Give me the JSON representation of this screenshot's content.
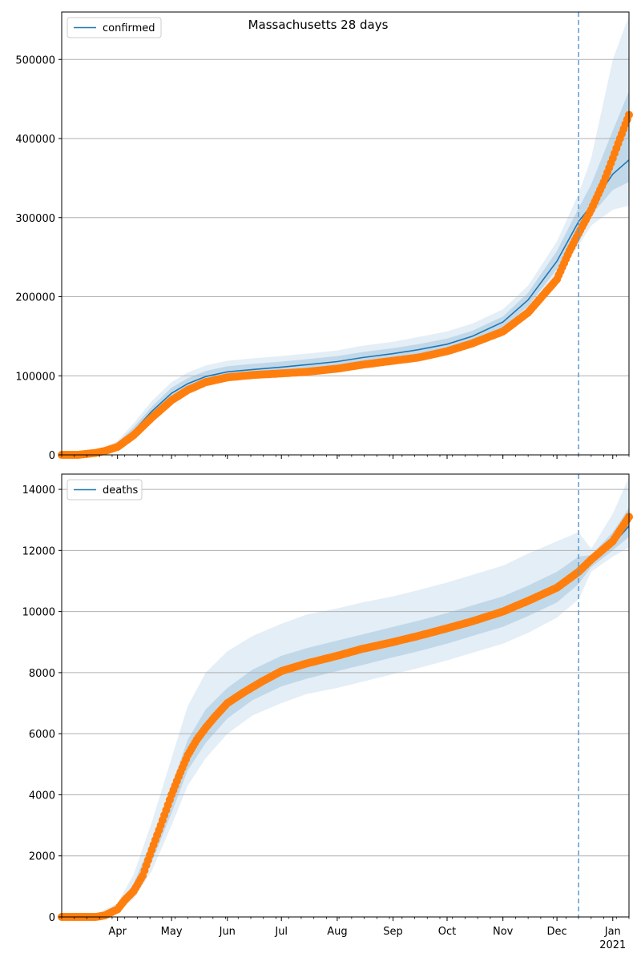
{
  "title": "Massachusetts 28 days",
  "colors": {
    "model_line": "#1f77b4",
    "observed": "#ff7f0e",
    "band": "#1f77b4",
    "grid": "#b0b0b0",
    "forecast_line": "#5a9bd5"
  },
  "x_axis": {
    "start": "2020-03-01",
    "end": "2021-01-10",
    "month_labels": [
      {
        "date": "2020-04-01",
        "label": "Apr"
      },
      {
        "date": "2020-05-01",
        "label": "May"
      },
      {
        "date": "2020-06-01",
        "label": "Jun"
      },
      {
        "date": "2020-07-01",
        "label": "Jul"
      },
      {
        "date": "2020-08-01",
        "label": "Aug"
      },
      {
        "date": "2020-09-01",
        "label": "Sep"
      },
      {
        "date": "2020-10-01",
        "label": "Oct"
      },
      {
        "date": "2020-11-01",
        "label": "Nov"
      },
      {
        "date": "2020-12-01",
        "label": "Dec"
      },
      {
        "date": "2021-01-01",
        "label": "Jan"
      }
    ],
    "year_label": "2021",
    "forecast_start": "2020-12-13"
  },
  "chart_data": [
    {
      "type": "line",
      "legend": [
        "confirmed"
      ],
      "legend_position": "upper-left",
      "grid": "horizontal",
      "ylim": [
        0,
        560000
      ],
      "yticks": [
        0,
        100000,
        200000,
        300000,
        400000,
        500000
      ],
      "x": [
        "2020-03-01",
        "2020-03-15",
        "2020-03-25",
        "2020-04-01",
        "2020-04-10",
        "2020-04-20",
        "2020-05-01",
        "2020-05-10",
        "2020-05-20",
        "2020-06-01",
        "2020-06-15",
        "2020-07-01",
        "2020-07-15",
        "2020-08-01",
        "2020-08-15",
        "2020-09-01",
        "2020-09-15",
        "2020-10-01",
        "2020-10-15",
        "2020-11-01",
        "2020-11-15",
        "2020-12-01",
        "2020-12-13",
        "2020-12-20",
        "2021-01-01",
        "2021-01-10"
      ],
      "series": [
        {
          "name": "confirmed",
          "model": [
            0,
            500,
            6000,
            13000,
            30000,
            55000,
            78000,
            90000,
            99000,
            105000,
            108000,
            111000,
            114000,
            118000,
            123000,
            128000,
            133000,
            140000,
            150000,
            168000,
            196000,
            245000,
            295000,
            315000,
            355000,
            373000
          ],
          "band_outer_lo": [
            0,
            300,
            4000,
            9000,
            22000,
            42000,
            64000,
            78000,
            87000,
            93000,
            97000,
            100000,
            103000,
            107000,
            112000,
            117000,
            122000,
            128000,
            138000,
            155000,
            180000,
            225000,
            265000,
            290000,
            310000,
            315000
          ],
          "band_outer_hi": [
            0,
            900,
            9000,
            18000,
            40000,
            68000,
            92000,
            104000,
            113000,
            119000,
            122000,
            125000,
            128000,
            132000,
            138000,
            143000,
            149000,
            156000,
            166000,
            184000,
            214000,
            270000,
            330000,
            375000,
            500000,
            555000
          ],
          "band_inner_lo": [
            0,
            400,
            5000,
            11000,
            26000,
            49000,
            71000,
            84000,
            93000,
            99000,
            102000,
            105000,
            108000,
            112000,
            117000,
            122000,
            127000,
            134000,
            144000,
            161000,
            188000,
            235000,
            282000,
            303000,
            335000,
            345000
          ],
          "band_inner_hi": [
            0,
            700,
            7500,
            15500,
            35000,
            61000,
            85000,
            97000,
            106000,
            112000,
            115000,
            118000,
            121000,
            125000,
            130000,
            135000,
            140000,
            147000,
            157000,
            175000,
            205000,
            258000,
            312000,
            342000,
            410000,
            460000
          ]
        }
      ],
      "observed": {
        "x": [
          "2020-03-01",
          "2020-03-10",
          "2020-03-20",
          "2020-03-25",
          "2020-04-01",
          "2020-04-10",
          "2020-04-20",
          "2020-05-01",
          "2020-05-10",
          "2020-05-20",
          "2020-06-01",
          "2020-06-15",
          "2020-07-01",
          "2020-07-15",
          "2020-08-01",
          "2020-08-15",
          "2020-09-01",
          "2020-09-15",
          "2020-10-01",
          "2020-10-15",
          "2020-11-01",
          "2020-11-15",
          "2020-12-01",
          "2020-12-08",
          "2020-12-13",
          "2020-12-20",
          "2020-12-27",
          "2021-01-01",
          "2021-01-05",
          "2021-01-10"
        ],
        "values": [
          0,
          0,
          2500,
          5000,
          10000,
          25000,
          47000,
          69000,
          82000,
          92000,
          98000,
          101000,
          103000,
          105000,
          109000,
          114000,
          119000,
          123000,
          131000,
          141000,
          156000,
          180000,
          222000,
          258000,
          280000,
          310000,
          345000,
          375000,
          400000,
          430000
        ]
      }
    },
    {
      "type": "line",
      "legend": [
        "deaths"
      ],
      "legend_position": "upper-left",
      "grid": "horizontal",
      "ylim": [
        0,
        14500
      ],
      "yticks": [
        0,
        2000,
        4000,
        6000,
        8000,
        10000,
        12000,
        14000
      ],
      "x": [
        "2020-03-01",
        "2020-03-20",
        "2020-04-01",
        "2020-04-10",
        "2020-04-20",
        "2020-05-01",
        "2020-05-10",
        "2020-05-20",
        "2020-06-01",
        "2020-06-15",
        "2020-07-01",
        "2020-07-15",
        "2020-08-01",
        "2020-08-15",
        "2020-09-01",
        "2020-09-15",
        "2020-10-01",
        "2020-10-15",
        "2020-11-01",
        "2020-11-15",
        "2020-12-01",
        "2020-12-13",
        "2020-12-20",
        "2021-01-01",
        "2021-01-10"
      ],
      "series": [
        {
          "name": "deaths",
          "model": [
            0,
            50,
            250,
            900,
            2100,
            3800,
            5200,
            6200,
            7000,
            7600,
            8050,
            8300,
            8550,
            8750,
            9000,
            9200,
            9450,
            9700,
            10000,
            10350,
            10800,
            11300,
            11650,
            12200,
            12800
          ],
          "band_outer_lo": [
            0,
            20,
            150,
            600,
            1500,
            3000,
            4300,
            5200,
            6000,
            6600,
            7000,
            7300,
            7500,
            7700,
            7950,
            8150,
            8400,
            8650,
            8950,
            9300,
            9800,
            10400,
            11300,
            11800,
            12100
          ],
          "band_outer_hi": [
            0,
            100,
            450,
            1400,
            3100,
            5200,
            6900,
            8000,
            8700,
            9200,
            9600,
            9900,
            10100,
            10300,
            10500,
            10700,
            10950,
            11200,
            11500,
            11900,
            12300,
            12600,
            12050,
            13200,
            14400
          ],
          "band_inner_lo": [
            0,
            35,
            200,
            750,
            1800,
            3400,
            4800,
            5700,
            6500,
            7100,
            7550,
            7800,
            8050,
            8250,
            8500,
            8700,
            8950,
            9200,
            9500,
            9850,
            10300,
            10900,
            11450,
            12000,
            12450
          ],
          "band_inner_hi": [
            0,
            70,
            320,
            1100,
            2500,
            4300,
            5800,
            6800,
            7500,
            8100,
            8550,
            8800,
            9050,
            9250,
            9500,
            9700,
            9950,
            10200,
            10500,
            10850,
            11300,
            11800,
            11850,
            12600,
            13400
          ]
        }
      ],
      "observed": {
        "x": [
          "2020-03-01",
          "2020-03-20",
          "2020-03-25",
          "2020-04-01",
          "2020-04-05",
          "2020-04-10",
          "2020-04-15",
          "2020-04-20",
          "2020-04-25",
          "2020-05-01",
          "2020-05-05",
          "2020-05-10",
          "2020-05-15",
          "2020-05-20",
          "2020-05-25",
          "2020-06-01",
          "2020-06-10",
          "2020-06-20",
          "2020-07-01",
          "2020-07-15",
          "2020-08-01",
          "2020-08-15",
          "2020-09-01",
          "2020-09-15",
          "2020-10-01",
          "2020-10-15",
          "2020-11-01",
          "2020-11-15",
          "2020-12-01",
          "2020-12-13",
          "2020-12-20",
          "2021-01-01",
          "2021-01-10"
        ],
        "values": [
          0,
          0,
          50,
          250,
          550,
          850,
          1350,
          2200,
          3000,
          4000,
          4600,
          5300,
          5800,
          6200,
          6550,
          7000,
          7350,
          7700,
          8050,
          8300,
          8550,
          8780,
          9000,
          9200,
          9450,
          9680,
          10000,
          10350,
          10780,
          11300,
          11700,
          12300,
          13100
        ]
      }
    }
  ]
}
